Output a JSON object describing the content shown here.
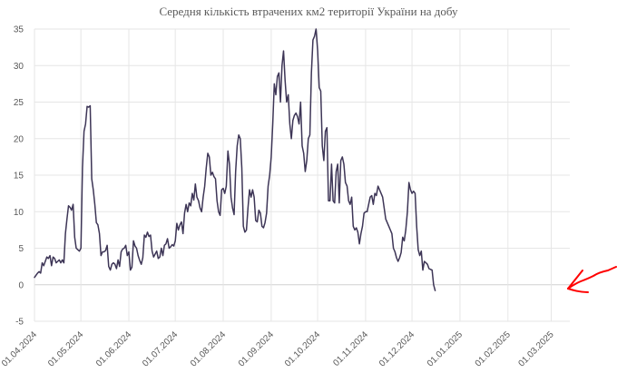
{
  "chart_data": {
    "type": "line",
    "title": "Середня кількість втрачених км2 території України на добу",
    "xlabel": "",
    "ylabel": "",
    "ylim": [
      -5,
      35
    ],
    "yticks": [
      -5,
      0,
      5,
      10,
      15,
      20,
      25,
      30,
      35
    ],
    "x_start": "01.04.2024",
    "x_end": "13.03.2025",
    "xtick_labels": [
      "01.04.2024",
      "01.05.2024",
      "01.06.2024",
      "01.07.2024",
      "01.08.2024",
      "01.09.2024",
      "01.10.2024",
      "01.11.2024",
      "01.12.2024",
      "01.01.2025",
      "01.02.2025",
      "01.03.2025"
    ],
    "xtick_days": [
      0,
      30,
      61,
      91,
      122,
      153,
      183,
      214,
      244,
      275,
      306,
      334
    ],
    "grid": true,
    "legend": "none",
    "line_color": "#3d3556",
    "series": [
      {
        "name": "Середня кількість втрачених км2 на добу",
        "points": [
          [
            0,
            1.0
          ],
          [
            2,
            1.6
          ],
          [
            3,
            1.8
          ],
          [
            4,
            1.6
          ],
          [
            5,
            3.0
          ],
          [
            6,
            2.6
          ],
          [
            7,
            3.2
          ],
          [
            8,
            3.8
          ],
          [
            9,
            3.6
          ],
          [
            10,
            4.0
          ],
          [
            11,
            2.6
          ],
          [
            12,
            3.8
          ],
          [
            13,
            3.6
          ],
          [
            14,
            3.0
          ],
          [
            15,
            3.2
          ],
          [
            16,
            3.4
          ],
          [
            17,
            3.0
          ],
          [
            18,
            3.4
          ],
          [
            19,
            3.0
          ],
          [
            20,
            7.0
          ],
          [
            21,
            9.0
          ],
          [
            22,
            10.8
          ],
          [
            23,
            10.6
          ],
          [
            24,
            10.2
          ],
          [
            25,
            11.0
          ],
          [
            26,
            6.5
          ],
          [
            27,
            5.0
          ],
          [
            28,
            4.8
          ],
          [
            29,
            4.6
          ],
          [
            30,
            5.0
          ],
          [
            31,
            16.0
          ],
          [
            32,
            21.0
          ],
          [
            33,
            22.0
          ],
          [
            34,
            24.4
          ],
          [
            35,
            24.3
          ],
          [
            36,
            24.5
          ],
          [
            37,
            14.5
          ],
          [
            38,
            13.0
          ],
          [
            39,
            11.0
          ],
          [
            40,
            8.5
          ],
          [
            41,
            8.2
          ],
          [
            42,
            7.0
          ],
          [
            43,
            4.0
          ],
          [
            44,
            4.5
          ],
          [
            45,
            4.5
          ],
          [
            46,
            4.7
          ],
          [
            47,
            5.4
          ],
          [
            48,
            2.5
          ],
          [
            49,
            2.0
          ],
          [
            50,
            2.8
          ],
          [
            51,
            3.0
          ],
          [
            52,
            2.8
          ],
          [
            53,
            2.2
          ],
          [
            54,
            3.4
          ],
          [
            55,
            2.5
          ],
          [
            56,
            4.5
          ],
          [
            57,
            4.9
          ],
          [
            58,
            5.0
          ],
          [
            59,
            5.4
          ],
          [
            60,
            4.0
          ],
          [
            61,
            4.5
          ],
          [
            62,
            2.0
          ],
          [
            63,
            2.4
          ],
          [
            64,
            6.0
          ],
          [
            65,
            5.3
          ],
          [
            66,
            5.0
          ],
          [
            67,
            4.0
          ],
          [
            68,
            3.3
          ],
          [
            69,
            2.8
          ],
          [
            70,
            3.7
          ],
          [
            71,
            6.8
          ],
          [
            72,
            6.5
          ],
          [
            73,
            7.2
          ],
          [
            74,
            6.6
          ],
          [
            75,
            6.8
          ],
          [
            76,
            4.6
          ],
          [
            77,
            3.8
          ],
          [
            78,
            4.2
          ],
          [
            79,
            4.6
          ],
          [
            80,
            3.6
          ],
          [
            81,
            3.8
          ],
          [
            82,
            5.0
          ],
          [
            83,
            4.0
          ],
          [
            84,
            5.4
          ],
          [
            85,
            5.6
          ],
          [
            86,
            6.3
          ],
          [
            87,
            5.0
          ],
          [
            88,
            5.2
          ],
          [
            89,
            5.5
          ],
          [
            90,
            5.3
          ],
          [
            91,
            6.0
          ],
          [
            92,
            8.4
          ],
          [
            93,
            7.5
          ],
          [
            94,
            8.2
          ],
          [
            95,
            8.6
          ],
          [
            96,
            7.0
          ],
          [
            97,
            9.8
          ],
          [
            98,
            11.0
          ],
          [
            99,
            10.0
          ],
          [
            100,
            11.2
          ],
          [
            101,
            10.8
          ],
          [
            102,
            12.5
          ],
          [
            103,
            11.6
          ],
          [
            104,
            13.8
          ],
          [
            105,
            12.0
          ],
          [
            106,
            11.5
          ],
          [
            107,
            10.5
          ],
          [
            108,
            10.0
          ],
          [
            109,
            12.0
          ],
          [
            110,
            13.5
          ],
          [
            111,
            16.0
          ],
          [
            112,
            18.0
          ],
          [
            113,
            17.5
          ],
          [
            114,
            15.0
          ],
          [
            115,
            15.4
          ],
          [
            116,
            14.8
          ],
          [
            117,
            14.5
          ],
          [
            118,
            11.5
          ],
          [
            119,
            10.0
          ],
          [
            120,
            9.5
          ],
          [
            121,
            13.0
          ],
          [
            122,
            13.2
          ],
          [
            123,
            12.5
          ],
          [
            124,
            13.5
          ],
          [
            125,
            18.3
          ],
          [
            126,
            16.5
          ],
          [
            127,
            12.0
          ],
          [
            128,
            10.5
          ],
          [
            129,
            9.6
          ],
          [
            130,
            15.5
          ],
          [
            131,
            19.0
          ],
          [
            132,
            20.5
          ],
          [
            133,
            20.0
          ],
          [
            134,
            16.0
          ],
          [
            135,
            8.0
          ],
          [
            136,
            7.2
          ],
          [
            137,
            7.5
          ],
          [
            138,
            10.5
          ],
          [
            139,
            13.0
          ],
          [
            140,
            12.0
          ],
          [
            141,
            13.0
          ],
          [
            142,
            12.0
          ],
          [
            143,
            8.8
          ],
          [
            144,
            8.6
          ],
          [
            145,
            10.2
          ],
          [
            146,
            9.8
          ],
          [
            147,
            8.0
          ],
          [
            148,
            7.8
          ],
          [
            149,
            8.5
          ],
          [
            150,
            9.8
          ],
          [
            151,
            13.5
          ],
          [
            152,
            15.0
          ],
          [
            153,
            17.5
          ],
          [
            154,
            22.0
          ],
          [
            155,
            27.5
          ],
          [
            156,
            26.0
          ],
          [
            157,
            28.5
          ],
          [
            158,
            29.0
          ],
          [
            159,
            25.0
          ],
          [
            160,
            30.0
          ],
          [
            161,
            32.0
          ],
          [
            162,
            28.0
          ],
          [
            163,
            25.0
          ],
          [
            164,
            26.0
          ],
          [
            165,
            22.0
          ],
          [
            166,
            20.0
          ],
          [
            167,
            22.5
          ],
          [
            168,
            23.2
          ],
          [
            169,
            23.5
          ],
          [
            170,
            23.0
          ],
          [
            171,
            22.0
          ],
          [
            172,
            25.0
          ],
          [
            173,
            19.0
          ],
          [
            174,
            18.0
          ],
          [
            175,
            15.5
          ],
          [
            176,
            17.0
          ],
          [
            177,
            20.0
          ],
          [
            178,
            20.5
          ],
          [
            179,
            29.0
          ],
          [
            180,
            33.5
          ],
          [
            181,
            34.0
          ],
          [
            182,
            35.0
          ],
          [
            183,
            32.0
          ],
          [
            184,
            27.0
          ],
          [
            185,
            26.5
          ],
          [
            186,
            19.0
          ],
          [
            187,
            17.0
          ],
          [
            188,
            21.0
          ],
          [
            189,
            21.5
          ],
          [
            190,
            11.5
          ],
          [
            191,
            11.5
          ],
          [
            192,
            16.5
          ],
          [
            193,
            11.5
          ],
          [
            194,
            11.2
          ],
          [
            195,
            15.5
          ],
          [
            196,
            16.5
          ],
          [
            197,
            11.2
          ],
          [
            198,
            17.0
          ],
          [
            199,
            17.5
          ],
          [
            200,
            16.5
          ],
          [
            201,
            14.0
          ],
          [
            202,
            13.5
          ],
          [
            203,
            11.5
          ],
          [
            204,
            11.0
          ],
          [
            205,
            12.0
          ],
          [
            206,
            8.0
          ],
          [
            207,
            7.5
          ],
          [
            208,
            7.8
          ],
          [
            209,
            7.2
          ],
          [
            210,
            5.6
          ],
          [
            211,
            7.0
          ],
          [
            212,
            8.0
          ],
          [
            213,
            9.8
          ],
          [
            214,
            10.0
          ],
          [
            215,
            10.0
          ],
          [
            216,
            11.0
          ],
          [
            217,
            12.0
          ],
          [
            218,
            12.2
          ],
          [
            219,
            11.0
          ],
          [
            220,
            12.5
          ],
          [
            221,
            12.2
          ],
          [
            222,
            13.5
          ],
          [
            223,
            13.0
          ],
          [
            224,
            12.5
          ],
          [
            225,
            12.0
          ],
          [
            226,
            10.5
          ],
          [
            227,
            9.0
          ],
          [
            228,
            8.5
          ],
          [
            229,
            8.0
          ],
          [
            230,
            7.5
          ],
          [
            231,
            7.0
          ],
          [
            232,
            5.0
          ],
          [
            233,
            4.5
          ],
          [
            234,
            3.7
          ],
          [
            235,
            3.2
          ],
          [
            236,
            3.7
          ],
          [
            237,
            4.4
          ],
          [
            238,
            6.5
          ],
          [
            239,
            6.0
          ],
          [
            240,
            7.5
          ],
          [
            241,
            10.0
          ],
          [
            242,
            14.0
          ],
          [
            243,
            13.0
          ],
          [
            244,
            12.5
          ],
          [
            245,
            12.8
          ],
          [
            246,
            12.5
          ],
          [
            247,
            8.0
          ],
          [
            248,
            4.8
          ],
          [
            249,
            4.0
          ],
          [
            250,
            4.6
          ],
          [
            251,
            2.0
          ],
          [
            252,
            3.2
          ],
          [
            253,
            3.0
          ],
          [
            254,
            2.8
          ],
          [
            255,
            2.2
          ],
          [
            256,
            2.1
          ],
          [
            257,
            2.0
          ],
          [
            258,
            0.0
          ],
          [
            259,
            -0.8
          ]
        ]
      }
    ],
    "annotation": {
      "type": "hand-drawn-arrow",
      "color": "#ff0000",
      "description": "червона стрілка"
    }
  }
}
